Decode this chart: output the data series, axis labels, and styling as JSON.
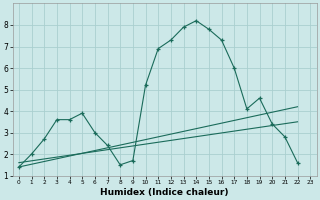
{
  "title": "",
  "xlabel": "Humidex (Indice chaleur)",
  "bg_color": "#cce8e8",
  "line_color": "#1a6b5a",
  "grid_color": "#aacfcf",
  "xlim": [
    -0.5,
    23.5
  ],
  "ylim": [
    1,
    9
  ],
  "xticks": [
    0,
    1,
    2,
    3,
    4,
    5,
    6,
    7,
    8,
    9,
    10,
    11,
    12,
    13,
    14,
    15,
    16,
    17,
    18,
    19,
    20,
    21,
    22,
    23
  ],
  "yticks": [
    1,
    2,
    3,
    4,
    5,
    6,
    7,
    8
  ],
  "main_x": [
    0,
    1,
    2,
    3,
    4,
    5,
    6,
    7,
    8,
    9,
    10,
    11,
    12,
    13,
    14,
    15,
    16,
    17,
    18,
    19,
    20,
    21,
    22
  ],
  "main_y": [
    1.4,
    2.0,
    2.7,
    3.6,
    3.6,
    3.9,
    3.0,
    2.4,
    1.5,
    1.7,
    5.2,
    6.9,
    7.3,
    7.9,
    8.2,
    7.8,
    7.3,
    6.0,
    4.1,
    4.6,
    3.4,
    2.8,
    1.6
  ],
  "line1_x": [
    0,
    22
  ],
  "line1_y": [
    1.4,
    4.2
  ],
  "line2_x": [
    0,
    22
  ],
  "line2_y": [
    1.6,
    3.5
  ],
  "tick_fontsize": 5.5,
  "xlabel_fontsize": 6.5
}
